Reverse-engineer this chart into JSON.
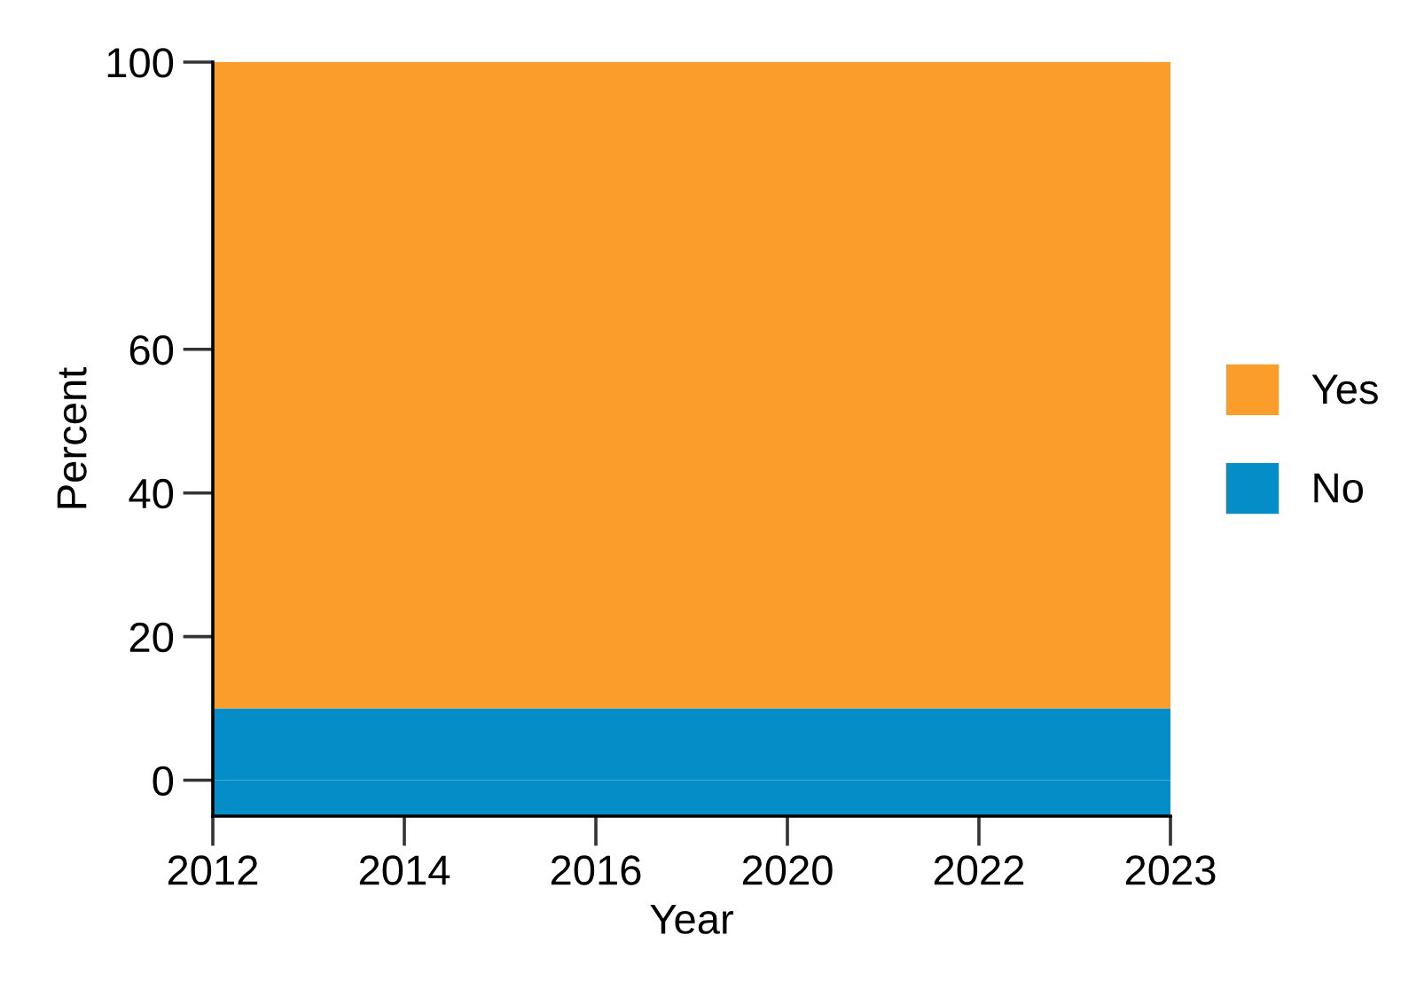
{
  "chart_data": {
    "type": "area",
    "stacked": true,
    "xlabel": "Year",
    "ylabel": "Percent",
    "categories": [
      "2012",
      "2014",
      "2016",
      "2020",
      "2022",
      "2023"
    ],
    "series": [
      {
        "name": "No",
        "color": "#058dc7",
        "values": [
          10,
          10,
          10,
          10,
          10,
          10
        ]
      },
      {
        "name": "Yes",
        "color": "#fb9d2a",
        "values": [
          90,
          90,
          90,
          90,
          90,
          90
        ]
      }
    ],
    "bands": [
      {
        "axis": "y",
        "from": -5,
        "to": 0,
        "color": "#058dc7"
      }
    ],
    "ylim": [
      -5,
      100
    ],
    "yticks": [
      0,
      20,
      40,
      60,
      100
    ],
    "grid": false,
    "legend": "right"
  }
}
